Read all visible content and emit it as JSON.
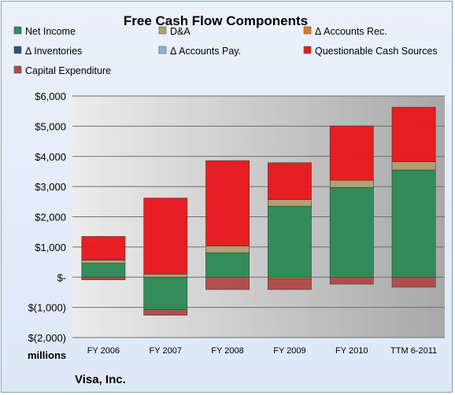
{
  "chart_data": {
    "type": "bar",
    "stacked": true,
    "title": "Free Cash Flow Components",
    "ylabel": "millions",
    "footer": "Visa, Inc.",
    "categories": [
      "FY 2006",
      "FY 2007",
      "FY 2008",
      "FY 2009",
      "FY 2010",
      "TTM 6-2011"
    ],
    "ylim": [
      -2000,
      6000
    ],
    "yticks": [
      6000,
      5000,
      4000,
      3000,
      2000,
      1000,
      0,
      -1000,
      -2000
    ],
    "ytick_labels": [
      "$6,000",
      "$5,000",
      "$4,000",
      "$3,000",
      "$2,000",
      "$1,000",
      "$-",
      "$(1,000)",
      "$(2,000)"
    ],
    "grid": true,
    "legend_position": "top",
    "series": [
      {
        "name": "Net Income",
        "color": "#2e8b57",
        "values": [
          460,
          -1080,
          810,
          2350,
          2970,
          3550
        ]
      },
      {
        "name": "D&A",
        "color": "#b0a070",
        "values": [
          110,
          100,
          220,
          220,
          240,
          270
        ]
      },
      {
        "name": "Δ Accounts Rec.",
        "color": "#e07a1f",
        "values": [
          10,
          0,
          0,
          -50,
          0,
          0
        ]
      },
      {
        "name": "Δ Inventories",
        "color": "#2f4f6f",
        "values": [
          0,
          0,
          0,
          0,
          0,
          0
        ]
      },
      {
        "name": "Δ Accounts Pay.",
        "color": "#8fb0d8",
        "values": [
          0,
          0,
          0,
          0,
          0,
          0
        ]
      },
      {
        "name": "Questionable Cash Sources",
        "color": "#e8191d",
        "values": [
          770,
          2520,
          2830,
          1220,
          1800,
          1810
        ]
      },
      {
        "name": "Capital Expenditure",
        "color": "#b04a4a",
        "values": [
          -90,
          -180,
          -410,
          -360,
          -230,
          -330
        ]
      }
    ]
  }
}
